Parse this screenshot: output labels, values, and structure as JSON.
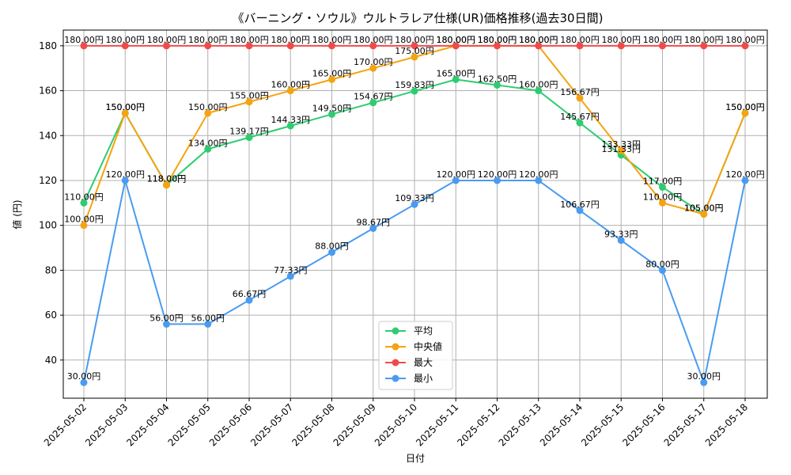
{
  "chart_data": {
    "type": "line",
    "title": "《バーニング・ソウル》ウルトラレア仕様(UR)価格推移(過去30日間)",
    "xlabel": "日付",
    "ylabel": "値 (円)",
    "ylim": [
      23,
      187
    ],
    "yticks": [
      40,
      60,
      80,
      100,
      120,
      140,
      160,
      180
    ],
    "grid": true,
    "legend_position": "bottom-center",
    "value_suffix": "円",
    "categories": [
      "2025-05-02",
      "2025-05-03",
      "2025-05-04",
      "2025-05-05",
      "2025-05-06",
      "2025-05-07",
      "2025-05-08",
      "2025-05-09",
      "2025-05-10",
      "2025-05-11",
      "2025-05-12",
      "2025-05-13",
      "2025-05-14",
      "2025-05-15",
      "2025-05-16",
      "2025-05-17",
      "2025-05-18"
    ],
    "series": [
      {
        "name": "平均",
        "color": "#2ecc71",
        "values": [
          110.0,
          150.0,
          118.0,
          134.0,
          139.17,
          144.33,
          149.5,
          154.67,
          159.83,
          165.0,
          162.5,
          160.0,
          145.67,
          131.33,
          117.0,
          105.0,
          150.0
        ]
      },
      {
        "name": "中央値",
        "color": "#f5a30f",
        "values": [
          100.0,
          150.0,
          118.0,
          150.0,
          155.0,
          160.0,
          165.0,
          170.0,
          175.0,
          180.0,
          180.0,
          180.0,
          156.67,
          133.33,
          110.0,
          105.0,
          150.0
        ]
      },
      {
        "name": "最大",
        "color": "#f04b4b",
        "values": [
          180.0,
          180.0,
          180.0,
          180.0,
          180.0,
          180.0,
          180.0,
          180.0,
          180.0,
          180.0,
          180.0,
          180.0,
          180.0,
          180.0,
          180.0,
          180.0,
          180.0
        ]
      },
      {
        "name": "最小",
        "color": "#4a9bf0",
        "values": [
          30.0,
          120.0,
          56.0,
          56.0,
          66.67,
          77.33,
          88.0,
          98.67,
          109.33,
          120.0,
          120.0,
          120.0,
          106.67,
          93.33,
          80.0,
          30.0,
          120.0
        ]
      }
    ]
  }
}
